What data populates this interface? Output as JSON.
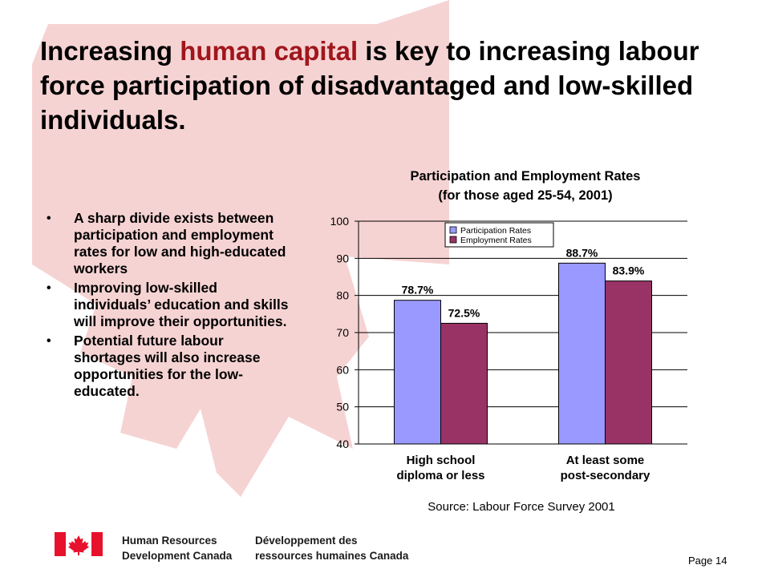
{
  "slide": {
    "title_parts": [
      "Increasing ",
      "human capital",
      " is key to increasing labour force participation of disadvantaged and low-skilled individuals."
    ],
    "bullets": [
      "A sharp divide exists between participation and employment rates for low and high-educated workers",
      "Improving low-skilled individuals’ education and skills will improve their opportunities.",
      "Potential future labour shortages will also increase opportunities for the low-educated."
    ],
    "source": "Source: Labour Force Survey 2001",
    "page": "Page 14",
    "department_en": [
      "Human Resources",
      "Development Canada"
    ],
    "department_fr": [
      "Développement des",
      "ressources humaines Canada"
    ],
    "colors": {
      "highlight": "#a0161c",
      "flag_red": "#e8112d",
      "maple_bg": "#f6d3d3"
    },
    "icons": [
      "canada-flag-icon",
      "maple-leaf-background-icon"
    ]
  },
  "chart_data": {
    "type": "bar",
    "title": [
      "Participation and Employment Rates",
      "(for those aged 25-54, 2001)"
    ],
    "categories": [
      [
        "High school",
        "diploma or less"
      ],
      [
        "At least some",
        "post-secondary"
      ]
    ],
    "series": [
      {
        "name": "Participation Rates",
        "values": [
          78.7,
          88.7
        ],
        "labels": [
          "78.7%",
          "88.7%"
        ],
        "color": "#9999ff"
      },
      {
        "name": "Employment Rates",
        "values": [
          72.5,
          83.9
        ],
        "labels": [
          "72.5%",
          "83.9%"
        ],
        "color": "#993366"
      }
    ],
    "ylim": [
      40,
      100
    ],
    "yticks": [
      40,
      50,
      60,
      70,
      80,
      90,
      100
    ],
    "grid": true,
    "legend_position": "top-right",
    "xlabel": "",
    "ylabel": ""
  }
}
